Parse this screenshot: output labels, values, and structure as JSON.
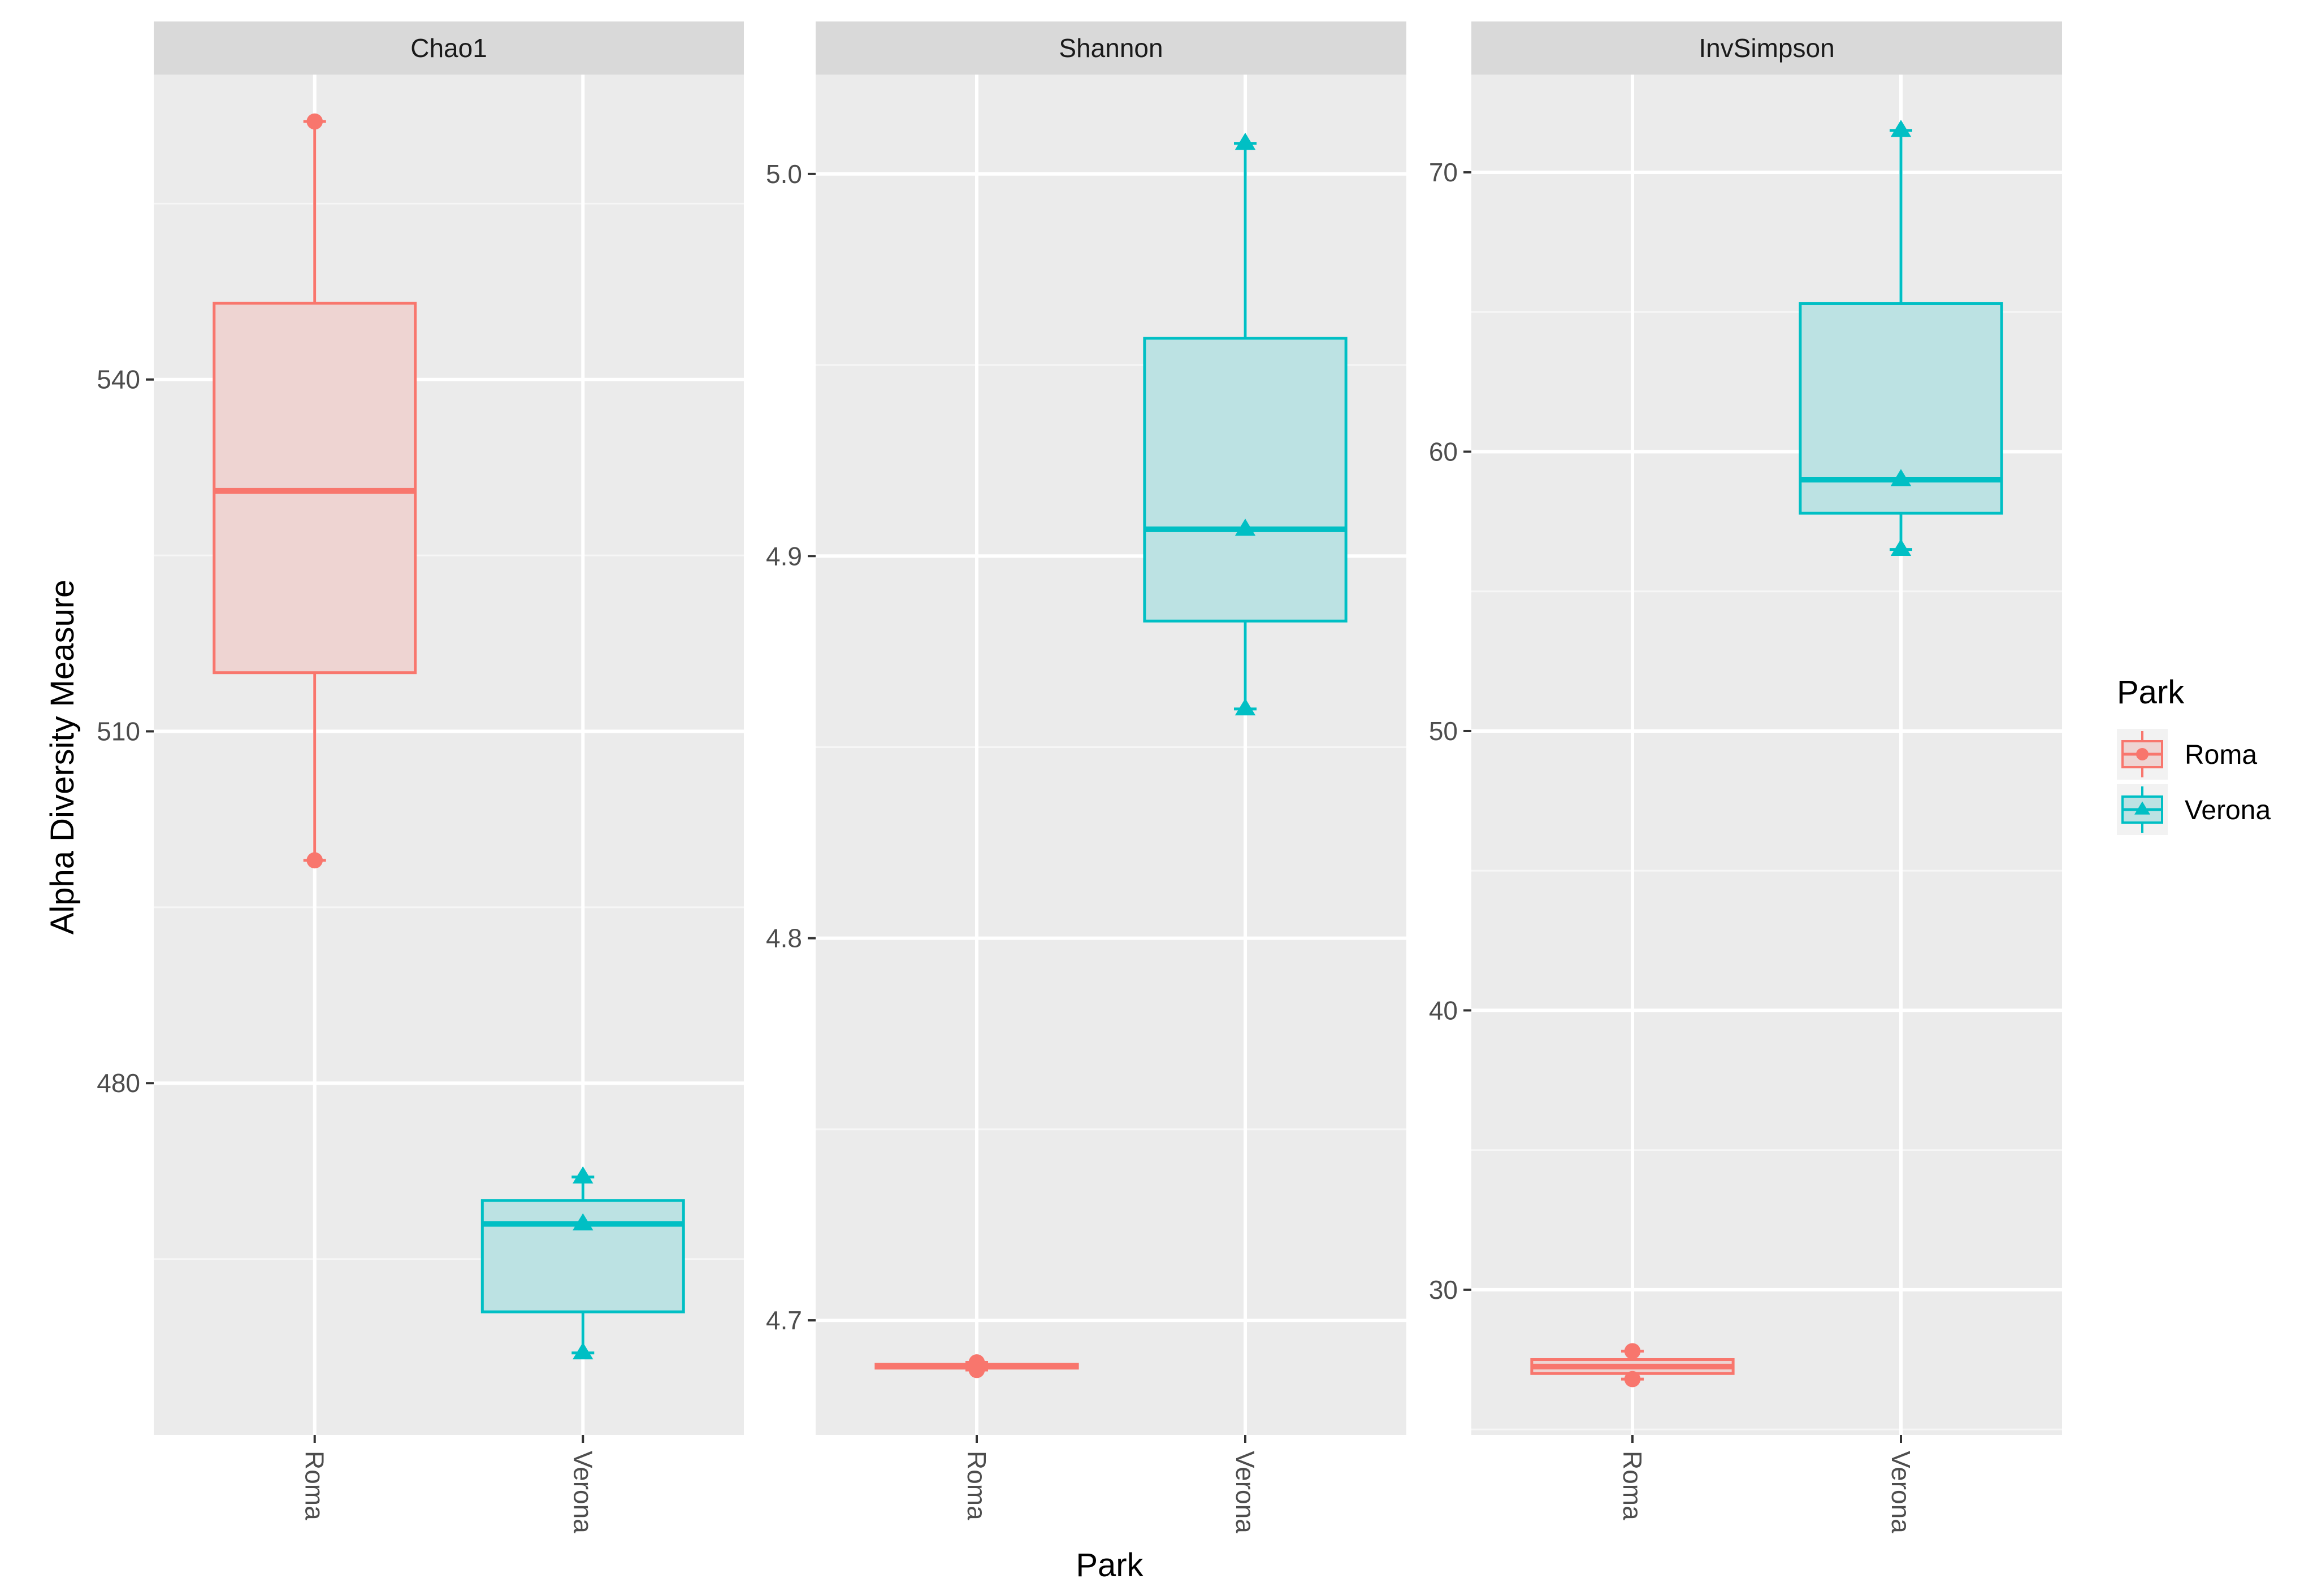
{
  "figure": {
    "ylabel": "Alpha Diversity Measure",
    "xlabel": "Park"
  },
  "legend": {
    "title": "Park",
    "entries": [
      {
        "name": "Roma",
        "color": "#F8766D",
        "shape": "circle"
      },
      {
        "name": "Verona",
        "color": "#00BFC4",
        "shape": "triangle"
      }
    ]
  },
  "chart_data": [
    {
      "type": "box",
      "title": "Chao1",
      "categories": [
        "Roma",
        "Verona"
      ],
      "ylim": [
        450,
        566
      ],
      "yticks": [
        480,
        510,
        540
      ],
      "grid": true,
      "series": [
        {
          "name": "Roma",
          "color": "#F8766D",
          "shape": "circle",
          "min": 499,
          "q1": 515,
          "median": 530.5,
          "q3": 546.5,
          "max": 562,
          "points": [
            562,
            499
          ]
        },
        {
          "name": "Verona",
          "color": "#00BFC4",
          "shape": "triangle",
          "min": 457,
          "q1": 460.5,
          "median": 468,
          "q3": 470,
          "max": 472,
          "points": [
            472,
            468,
            457
          ]
        }
      ]
    },
    {
      "type": "box",
      "title": "Shannon",
      "categories": [
        "Roma",
        "Verona"
      ],
      "ylim": [
        4.67,
        5.026
      ],
      "yticks": [
        4.7,
        4.8,
        4.9,
        5.0
      ],
      "ytick_labels": [
        "4.7",
        "4.8",
        "4.9",
        "5.0"
      ],
      "grid": true,
      "series": [
        {
          "name": "Roma",
          "color": "#F8766D",
          "shape": "circle",
          "min": 4.687,
          "q1": 4.6875,
          "median": 4.688,
          "q3": 4.6885,
          "max": 4.689,
          "points": [
            4.689,
            4.687
          ]
        },
        {
          "name": "Verona",
          "color": "#00BFC4",
          "shape": "triangle",
          "min": 4.86,
          "q1": 4.883,
          "median": 4.907,
          "q3": 4.957,
          "max": 5.008,
          "points": [
            5.008,
            4.907,
            4.86
          ]
        }
      ]
    },
    {
      "type": "box",
      "title": "InvSimpson",
      "categories": [
        "Roma",
        "Verona"
      ],
      "ylim": [
        24.8,
        73.5
      ],
      "yticks": [
        30,
        40,
        50,
        60,
        70
      ],
      "grid": true,
      "series": [
        {
          "name": "Roma",
          "color": "#F8766D",
          "shape": "circle",
          "min": 26.8,
          "q1": 27.0,
          "median": 27.25,
          "q3": 27.5,
          "max": 27.8,
          "points": [
            27.8,
            26.8
          ]
        },
        {
          "name": "Verona",
          "color": "#00BFC4",
          "shape": "triangle",
          "min": 56.5,
          "q1": 57.8,
          "median": 59.0,
          "q3": 65.3,
          "max": 71.5,
          "points": [
            71.5,
            59.0,
            56.5
          ]
        }
      ]
    }
  ]
}
